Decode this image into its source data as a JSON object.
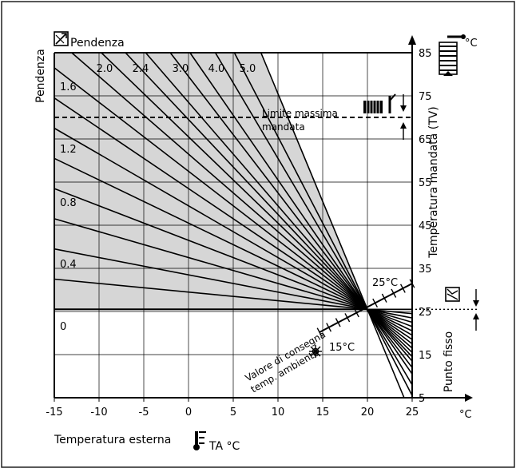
{
  "chart_data": {
    "type": "line",
    "title": "",
    "top_label": "Pendenza",
    "xlabel": "Temperatura esterna",
    "x_unit_label": "TA °C",
    "x_axis_end_unit": "°C",
    "ylabel_left": "Pendenza",
    "ylabel_right": "Temperatura mandata (TV)",
    "y_top_unit": "°C",
    "right_label_fixed_point": "Punto fisso",
    "xlim": [
      -15,
      25
    ],
    "ylim": [
      5,
      85
    ],
    "x_ticks": [
      "-15",
      "-10",
      "-5",
      "0",
      "5",
      "10",
      "15",
      "20",
      "25"
    ],
    "y_ticks": [
      "5",
      "15",
      "25",
      "35",
      "45",
      "55",
      "65",
      "75",
      "85"
    ],
    "slope_labels_top": [
      "2.0",
      "2.4",
      "3.0",
      "4.0",
      "5.0"
    ],
    "slope_labels_left": [
      "1.6",
      "1.2",
      "0.8",
      "0.4",
      "0"
    ],
    "pivot": {
      "x": 20,
      "y": 25.5
    },
    "slopes": [
      0,
      0.2,
      0.4,
      0.6,
      0.8,
      1.0,
      1.2,
      1.4,
      1.6,
      1.8,
      2.0,
      2.2,
      2.4,
      2.7,
      3.0,
      3.5,
      4.0,
      5.0
    ],
    "max_flow_limit": {
      "y": 70,
      "label_line1": "Limite massima",
      "label_line2": "mandata"
    },
    "room_setpoint": {
      "label_line1": "Valore di consegna",
      "label_line2": "temp. ambiente",
      "low_label": "15°C",
      "high_label": "25°C"
    }
  }
}
